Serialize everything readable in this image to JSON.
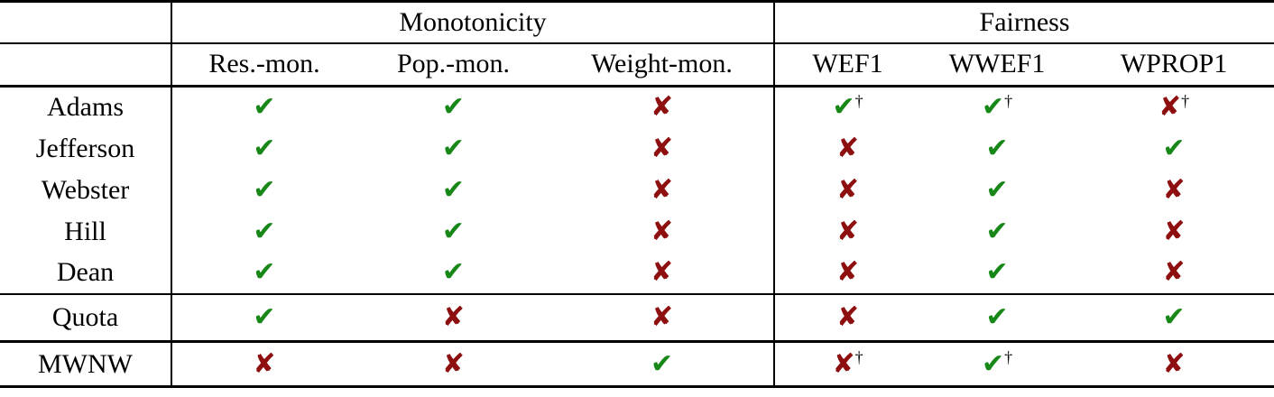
{
  "colors": {
    "check_green": "#178717",
    "cross_red": "#8e0f0f",
    "rule_black": "#000000"
  },
  "glyphs": {
    "check": "✔",
    "cross": "✘",
    "dagger": "†"
  },
  "table": {
    "corner_label": "",
    "groups": [
      {
        "label": "Monotonicity",
        "span": 3
      },
      {
        "label": "Fairness",
        "span": 3
      }
    ],
    "columns": [
      "Res.-mon.",
      "Pop.-mon.",
      "Weight-mon.",
      "WEF1",
      "WWEF1",
      "WPROP1"
    ],
    "rows": [
      {
        "label": "Adams",
        "section": "divisor",
        "cells": [
          "check",
          "check",
          "cross",
          "check-dagger",
          "check-dagger",
          "cross-dagger"
        ]
      },
      {
        "label": "Jefferson",
        "section": "divisor",
        "cells": [
          "check",
          "check",
          "cross",
          "cross",
          "check",
          "check"
        ]
      },
      {
        "label": "Webster",
        "section": "divisor",
        "cells": [
          "check",
          "check",
          "cross",
          "cross",
          "check",
          "cross"
        ]
      },
      {
        "label": "Hill",
        "section": "divisor",
        "cells": [
          "check",
          "check",
          "cross",
          "cross",
          "check",
          "cross"
        ]
      },
      {
        "label": "Dean",
        "section": "divisor",
        "cells": [
          "check",
          "check",
          "cross",
          "cross",
          "check",
          "cross"
        ]
      },
      {
        "label": "Quota",
        "section": "quota",
        "cells": [
          "check",
          "cross",
          "cross",
          "cross",
          "check",
          "check"
        ]
      },
      {
        "label": "MWNW",
        "section": "mwnw",
        "cells": [
          "cross",
          "cross",
          "check",
          "cross-dagger",
          "check-dagger",
          "cross"
        ]
      }
    ]
  }
}
